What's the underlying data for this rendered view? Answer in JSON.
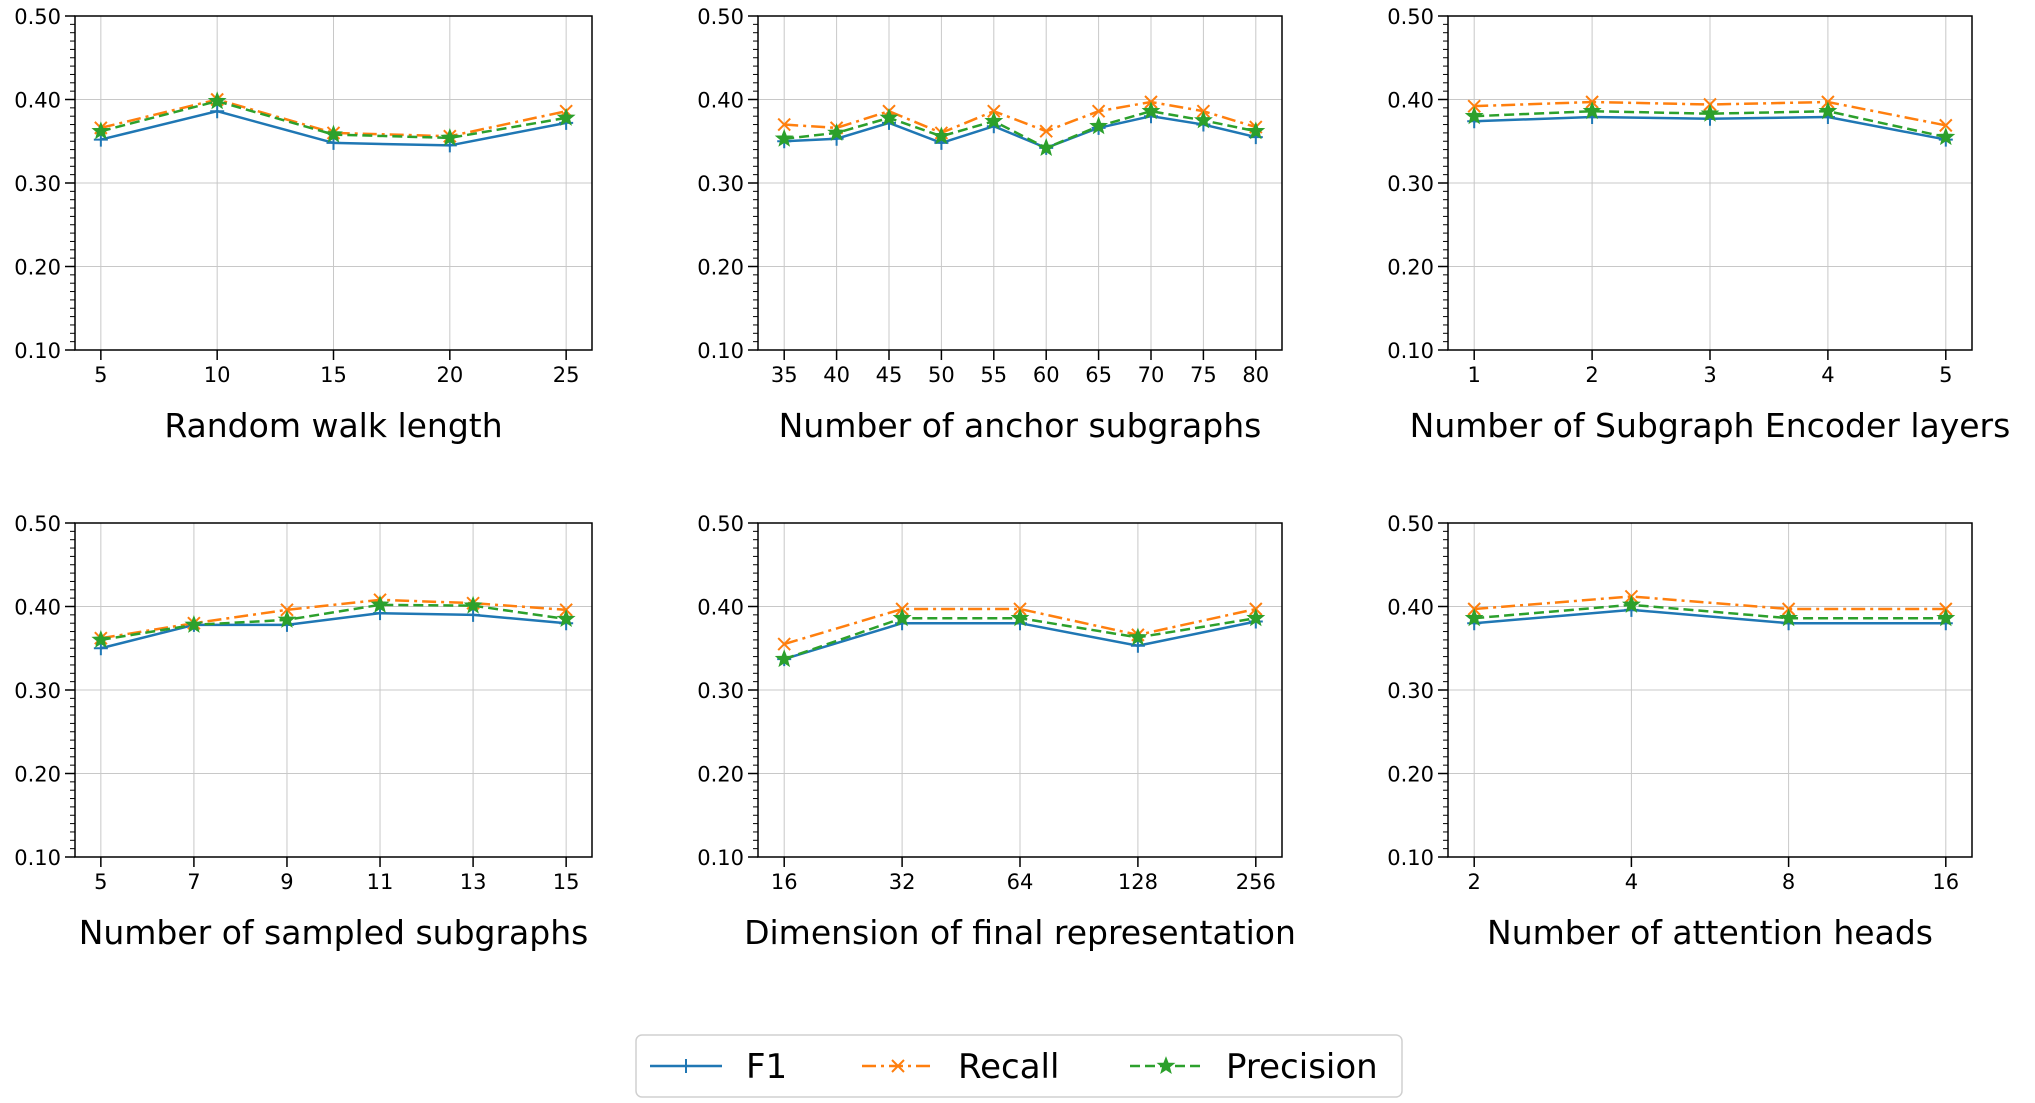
{
  "colors": {
    "F1": "#1f77b4",
    "Recall": "#ff7f0e",
    "Precision": "#2ca02c",
    "grid": "#c8c8c8"
  },
  "legend": {
    "placement": "bottom-center",
    "entries": [
      {
        "name": "F1",
        "marker": "plus",
        "linestyle": "solid"
      },
      {
        "name": "Recall",
        "marker": "x",
        "linestyle": "dashdot"
      },
      {
        "name": "Precision",
        "marker": "star",
        "linestyle": "dashed"
      }
    ]
  },
  "chart_data": [
    {
      "type": "line",
      "xlabel": "Random walk length",
      "ylabel": "",
      "ylim": [
        0.1,
        0.5
      ],
      "yticks": [
        "0.10",
        "0.20",
        "0.30",
        "0.40",
        "0.50"
      ],
      "categories": [
        "5",
        "10",
        "15",
        "20",
        "25"
      ],
      "grid": true,
      "series": [
        {
          "name": "F1",
          "values": [
            0.352,
            0.386,
            0.348,
            0.345,
            0.372
          ]
        },
        {
          "name": "Recall",
          "values": [
            0.366,
            0.4,
            0.36,
            0.356,
            0.386
          ]
        },
        {
          "name": "Precision",
          "values": [
            0.362,
            0.398,
            0.358,
            0.354,
            0.378
          ]
        }
      ]
    },
    {
      "type": "line",
      "xlabel": "Number of anchor subgraphs",
      "ylabel": "",
      "ylim": [
        0.1,
        0.5
      ],
      "yticks": [
        "0.10",
        "0.20",
        "0.30",
        "0.40",
        "0.50"
      ],
      "categories": [
        "35",
        "40",
        "45",
        "50",
        "55",
        "60",
        "65",
        "70",
        "75",
        "80"
      ],
      "grid": true,
      "series": [
        {
          "name": "F1",
          "values": [
            0.35,
            0.353,
            0.372,
            0.348,
            0.368,
            0.342,
            0.366,
            0.38,
            0.37,
            0.355
          ]
        },
        {
          "name": "Recall",
          "values": [
            0.37,
            0.366,
            0.386,
            0.36,
            0.386,
            0.362,
            0.386,
            0.397,
            0.386,
            0.367
          ]
        },
        {
          "name": "Precision",
          "values": [
            0.353,
            0.36,
            0.378,
            0.356,
            0.374,
            0.342,
            0.368,
            0.386,
            0.375,
            0.362
          ]
        }
      ]
    },
    {
      "type": "line",
      "xlabel": "Number of Subgraph Encoder layers",
      "ylabel": "",
      "ylim": [
        0.1,
        0.5
      ],
      "yticks": [
        "0.10",
        "0.20",
        "0.30",
        "0.40",
        "0.50"
      ],
      "categories": [
        "1",
        "2",
        "3",
        "4",
        "5"
      ],
      "grid": true,
      "series": [
        {
          "name": "F1",
          "values": [
            0.374,
            0.379,
            0.377,
            0.379,
            0.352
          ]
        },
        {
          "name": "Recall",
          "values": [
            0.392,
            0.397,
            0.394,
            0.397,
            0.369
          ]
        },
        {
          "name": "Precision",
          "values": [
            0.38,
            0.386,
            0.383,
            0.386,
            0.355
          ]
        }
      ]
    },
    {
      "type": "line",
      "xlabel": "Number of sampled subgraphs",
      "ylabel": "",
      "ylim": [
        0.1,
        0.5
      ],
      "yticks": [
        "0.10",
        "0.20",
        "0.30",
        "0.40",
        "0.50"
      ],
      "categories": [
        "5",
        "7",
        "9",
        "11",
        "13",
        "15"
      ],
      "grid": true,
      "series": [
        {
          "name": "F1",
          "values": [
            0.35,
            0.378,
            0.378,
            0.392,
            0.39,
            0.38
          ]
        },
        {
          "name": "Recall",
          "values": [
            0.362,
            0.38,
            0.396,
            0.408,
            0.404,
            0.396
          ]
        },
        {
          "name": "Precision",
          "values": [
            0.36,
            0.378,
            0.384,
            0.402,
            0.401,
            0.385
          ]
        }
      ]
    },
    {
      "type": "line",
      "xlabel": "Dimension of final representation",
      "ylabel": "",
      "ylim": [
        0.1,
        0.5
      ],
      "yticks": [
        "0.10",
        "0.20",
        "0.30",
        "0.40",
        "0.50"
      ],
      "categories": [
        "16",
        "32",
        "64",
        "128",
        "256"
      ],
      "grid": true,
      "series": [
        {
          "name": "F1",
          "values": [
            0.337,
            0.38,
            0.38,
            0.353,
            0.382
          ]
        },
        {
          "name": "Recall",
          "values": [
            0.355,
            0.397,
            0.397,
            0.366,
            0.397
          ]
        },
        {
          "name": "Precision",
          "values": [
            0.337,
            0.386,
            0.386,
            0.363,
            0.386
          ]
        }
      ]
    },
    {
      "type": "line",
      "xlabel": "Number of attention heads",
      "ylabel": "",
      "ylim": [
        0.1,
        0.5
      ],
      "yticks": [
        "0.10",
        "0.20",
        "0.30",
        "0.40",
        "0.50"
      ],
      "categories": [
        "2",
        "4",
        "8",
        "16"
      ],
      "grid": true,
      "series": [
        {
          "name": "F1",
          "values": [
            0.38,
            0.396,
            0.38,
            0.38
          ]
        },
        {
          "name": "Recall",
          "values": [
            0.397,
            0.412,
            0.397,
            0.397
          ]
        },
        {
          "name": "Precision",
          "values": [
            0.386,
            0.402,
            0.386,
            0.386
          ]
        }
      ]
    }
  ]
}
